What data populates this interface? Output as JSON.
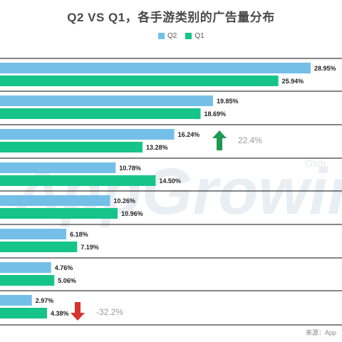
{
  "title": "Q2 VS Q1，各手游类别的广告量分布",
  "legend": {
    "q2": "Q2",
    "q1": "Q1"
  },
  "colors": {
    "q2": "#74bfe8",
    "q1": "#16c48a",
    "up": "#1b9a52",
    "down": "#d8332c"
  },
  "source": "来源：App",
  "watermark": "AppGrowing",
  "watermark_small": "Glob",
  "annotations": [
    {
      "group_index": 2,
      "direction": "up",
      "text": "22.4%",
      "arrow": "up-arrow-icon"
    },
    {
      "group_index": 7,
      "direction": "down",
      "text": "-32.2%",
      "arrow": "down-arrow-icon"
    }
  ],
  "chart_data": {
    "type": "bar",
    "orientation": "horizontal",
    "series": [
      {
        "name": "Q2",
        "values": [
          28.95,
          19.85,
          16.24,
          10.78,
          10.26,
          6.18,
          4.76,
          2.97
        ],
        "labels": [
          "28.95%",
          "19.85%",
          "16.24%",
          "10.78%",
          "10.26%",
          "6.18%",
          "4.76%",
          "2.97%"
        ]
      },
      {
        "name": "Q1",
        "values": [
          25.94,
          18.69,
          13.28,
          14.5,
          10.96,
          7.19,
          5.06,
          4.38
        ],
        "labels": [
          "25.94%",
          "18.69%",
          "13.28%",
          "14.50%",
          "10.96%",
          "7.19%",
          "5.06%",
          "4.38%"
        ]
      }
    ],
    "title": "Q2 VS Q1，各手游类别的广告量分布",
    "xlim": [
      0,
      33
    ],
    "unit": "%",
    "legend_position": "top-right",
    "grid": false
  }
}
